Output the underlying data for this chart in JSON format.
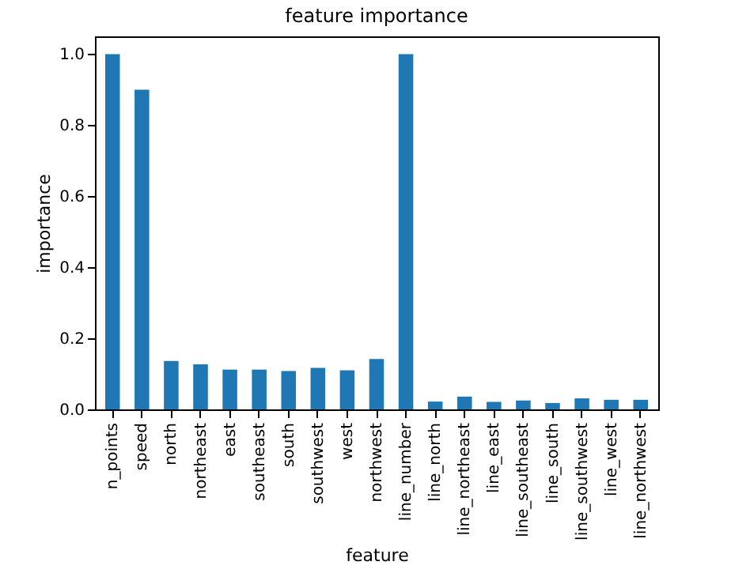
{
  "chart_data": {
    "type": "bar",
    "title": "feature importance",
    "xlabel": "feature",
    "ylabel": "importance",
    "categories": [
      "n_points",
      "speed",
      "north",
      "northeast",
      "east",
      "southeast",
      "south",
      "southwest",
      "west",
      "northwest",
      "line_number",
      "line_north",
      "line_northeast",
      "line_east",
      "line_southeast",
      "line_south",
      "line_southwest",
      "line_west",
      "line_northwest"
    ],
    "values": [
      1.0,
      0.9,
      0.136,
      0.127,
      0.112,
      0.112,
      0.108,
      0.117,
      0.11,
      0.142,
      1.0,
      0.022,
      0.036,
      0.021,
      0.025,
      0.018,
      0.031,
      0.027,
      0.027
    ],
    "color": "#1f77b4",
    "ylim": [
      0,
      1.05
    ],
    "yticks": [
      {
        "value": 0,
        "label": "0.0"
      },
      0.2,
      0.4,
      0.6,
      0.8,
      {
        "value": 1,
        "label": "1.0"
      }
    ],
    "grid": false
  }
}
